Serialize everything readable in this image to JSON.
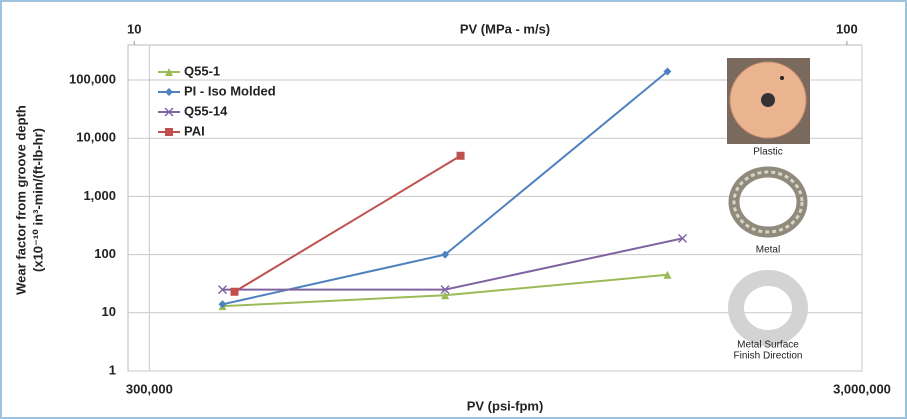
{
  "chart_data": {
    "type": "line",
    "xlabel": "PV (psi-fpm)",
    "x2label": "PV (MPa - m/s)",
    "ylabel": [
      "Wear factor from groove depth",
      "(x10⁻¹⁰ in³-min/(ft-lb-hr)"
    ],
    "xscale": "log",
    "yscale": "log",
    "xlim": [
      280000,
      3000000
    ],
    "xticks": [
      {
        "value": 300000,
        "label": "300,000"
      },
      {
        "value": 3000000,
        "label": "3,000,000"
      }
    ],
    "x2lim": [
      9.8,
      105
    ],
    "x2ticks": [
      10,
      100
    ],
    "ylim": [
      1,
      400000
    ],
    "yticks": [
      1,
      10,
      100,
      {
        "value": 1000,
        "label": "1,000"
      },
      {
        "value": 10000,
        "label": "10,000"
      },
      {
        "value": 100000,
        "label": "100,000"
      }
    ],
    "grid": true,
    "legend": "top-left",
    "series": [
      {
        "name": "Q55-1",
        "color": "#9bbb59",
        "marker": "triangle",
        "x": [
          380000,
          780000,
          1600000
        ],
        "values": [
          13,
          20,
          45
        ]
      },
      {
        "name": "PI - Iso Molded",
        "color": "#4f81bd",
        "marker": "diamond",
        "x": [
          380000,
          780000,
          1600000
        ],
        "values": [
          14,
          100,
          140000
        ]
      },
      {
        "name": "Q55-14",
        "color": "#8064a2",
        "marker": "x",
        "x": [
          380000,
          780000,
          1680000
        ],
        "values": [
          25,
          25,
          190
        ]
      },
      {
        "name": "PAI",
        "color": "#c0504d",
        "marker": "square",
        "x": [
          395000,
          820000
        ],
        "values": [
          23,
          5000
        ]
      }
    ],
    "images": [
      {
        "label": [
          "Plastic"
        ]
      },
      {
        "label": [
          "Metal"
        ]
      },
      {
        "label": [
          "Metal Surface",
          "Finish Direction"
        ]
      }
    ]
  }
}
